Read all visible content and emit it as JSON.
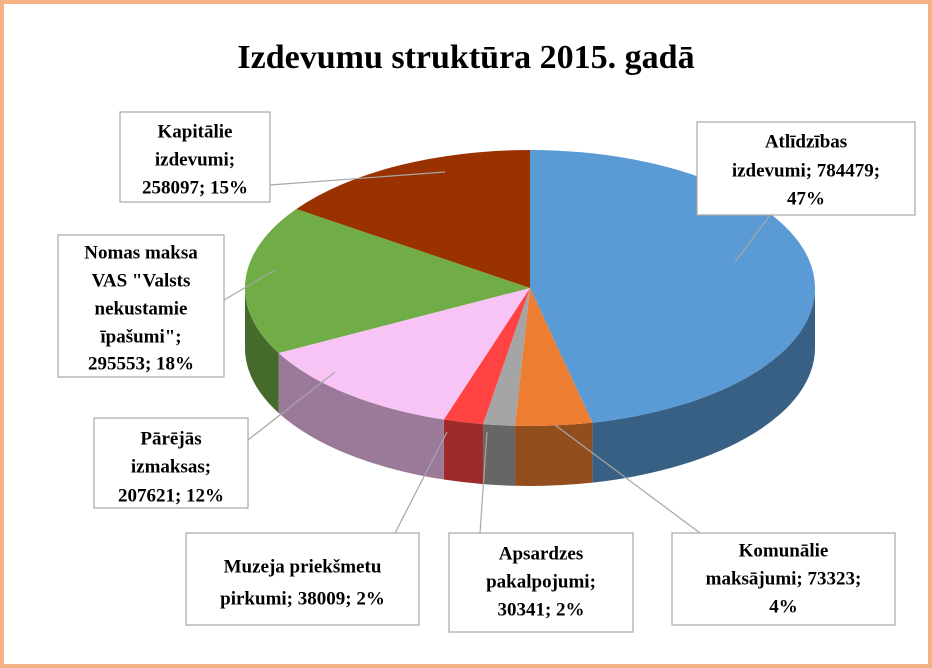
{
  "chart_data": {
    "type": "pie3d",
    "title": "Izdevumu struktūra 2015. gadā",
    "values": [
      784479,
      73323,
      30341,
      38009,
      207621,
      295553,
      258097
    ],
    "value_labels": [
      [
        "Atlīdzības",
        "izdevumi; 784479;",
        "47%"
      ],
      [
        "Komunālie",
        "maksājumi; 73323;",
        "4%"
      ],
      [
        "Apsardzes",
        "pakalpojumi;",
        "30341; 2%"
      ],
      [
        "Muzeja priekšmetu",
        "pirkumi; 38009; 2%"
      ],
      [
        "Pārējās",
        "izmaksas;",
        "207621; 12%"
      ],
      [
        "Nomas maksa",
        "VAS \"Valsts",
        "nekustamie",
        "īpašumi\";",
        "295553; 18%"
      ],
      [
        "Kapitālie",
        "izdevumi;",
        "258097; 15%"
      ]
    ],
    "colors": [
      "#5b9bd5",
      "#ed7d31",
      "#a5a5a5",
      "#ff4343",
      "#f8c4f5",
      "#70ad47",
      "#9a3200"
    ]
  }
}
